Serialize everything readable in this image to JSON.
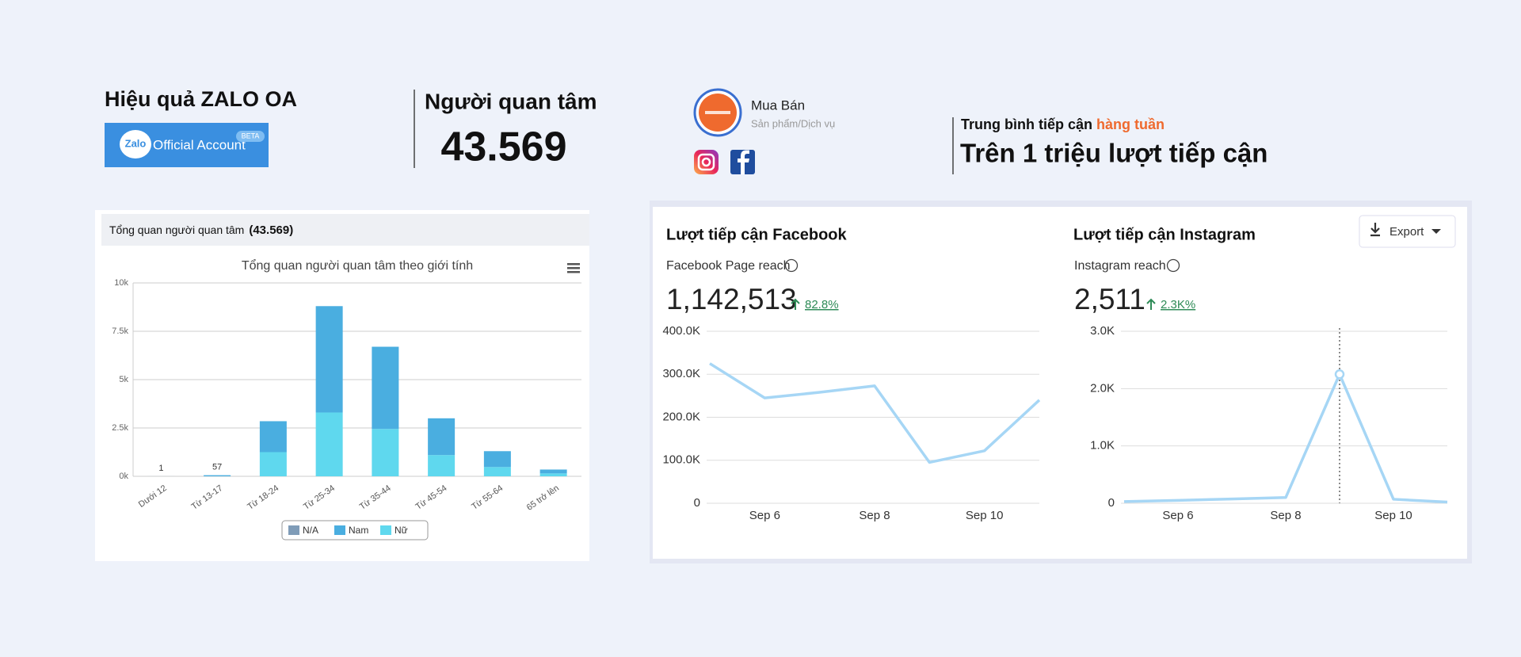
{
  "zalo": {
    "title": "Hiệu quả ZALO OA",
    "brand": "Zalo",
    "logo_text": "Official Account",
    "badge": "BETA"
  },
  "followers": {
    "label": "Người quan tâm",
    "value": "43.569"
  },
  "page": {
    "name": "Mua Bán",
    "category": "Sản phẩm/Dịch vụ"
  },
  "reach": {
    "label": "Trung bình tiếp cận ",
    "label_highlight": "hàng tuần",
    "headline": "Trên 1 triệu lượt tiếp cận"
  },
  "zalo_panel": {
    "header": "Tổng quan người quan tâm",
    "count": "(43.569)"
  },
  "fb_panel": {
    "title": "Lượt tiếp cận Facebook",
    "metric": "Facebook Page reach",
    "total": "1,142,513",
    "change": "82.8%"
  },
  "ig_panel": {
    "title": "Lượt tiếp cận Instagram",
    "metric": "Instagram reach",
    "total": "2,511",
    "change": "2.3K%",
    "export": "Export"
  },
  "chart_data": [
    {
      "type": "bar",
      "title": "Tổng quan người quan tâm theo giới tính",
      "stacked": true,
      "categories": [
        "Dưới 12",
        "Từ 13-17",
        "Từ 18-24",
        "Từ 25-34",
        "Từ 35-44",
        "Từ 45-54",
        "Từ 55-64",
        "65 trở lên"
      ],
      "series": [
        {
          "name": "N/A",
          "color": "#7f9cb8",
          "values": [
            0,
            0,
            0,
            0,
            0,
            0,
            0,
            0
          ]
        },
        {
          "name": "Nữ",
          "color": "#5fd8ee",
          "values": [
            0,
            0,
            1250,
            3300,
            2450,
            1100,
            480,
            150
          ]
        },
        {
          "name": "Nam",
          "color": "#4aaee0",
          "values": [
            1,
            57,
            1600,
            5500,
            4250,
            1900,
            820,
            200
          ],
          "value_labels": [
            "1",
            "57",
            null,
            null,
            null,
            null,
            null,
            null
          ]
        }
      ],
      "ylim": [
        0,
        10000
      ],
      "yticks": [
        {
          "value": 0,
          "label": "0k"
        },
        {
          "value": 2500,
          "label": "2.5k"
        },
        {
          "value": 5000,
          "label": "5k"
        },
        {
          "value": 7500,
          "label": "7.5k"
        },
        {
          "value": 10000,
          "label": "10k"
        }
      ],
      "grid": true
    },
    {
      "type": "line",
      "categories": [
        null,
        "Sep 6",
        null,
        "Sep 8",
        null,
        "Sep 10",
        null
      ],
      "series": [
        {
          "name": "Facebook Page reach",
          "color": "#a6d6f5",
          "values": [
            325000,
            245000,
            258000,
            273000,
            95000,
            122000,
            240000
          ]
        }
      ],
      "ylim": [
        0,
        400000
      ],
      "yticks": [
        0,
        {
          "value": 100000,
          "label": "100.0K"
        },
        {
          "value": 200000,
          "label": "200.0K"
        },
        {
          "value": 300000,
          "label": "300.0K"
        },
        {
          "value": 400000,
          "label": "400.0K"
        }
      ],
      "grid": true
    },
    {
      "type": "line",
      "categories": [
        null,
        "Sep 6",
        null,
        "Sep 8",
        null,
        "Sep 10",
        null
      ],
      "series": [
        {
          "name": "Instagram reach",
          "color": "#a6d6f5",
          "values": [
            30,
            50,
            75,
            100,
            2250,
            70,
            20
          ]
        }
      ],
      "ylim": [
        0,
        3000
      ],
      "yticks": [
        0,
        {
          "value": 1000,
          "label": "1.0K"
        },
        {
          "value": 2000,
          "label": "2.0K"
        },
        {
          "value": 3000,
          "label": "3.0K"
        }
      ],
      "grid": true
    }
  ]
}
